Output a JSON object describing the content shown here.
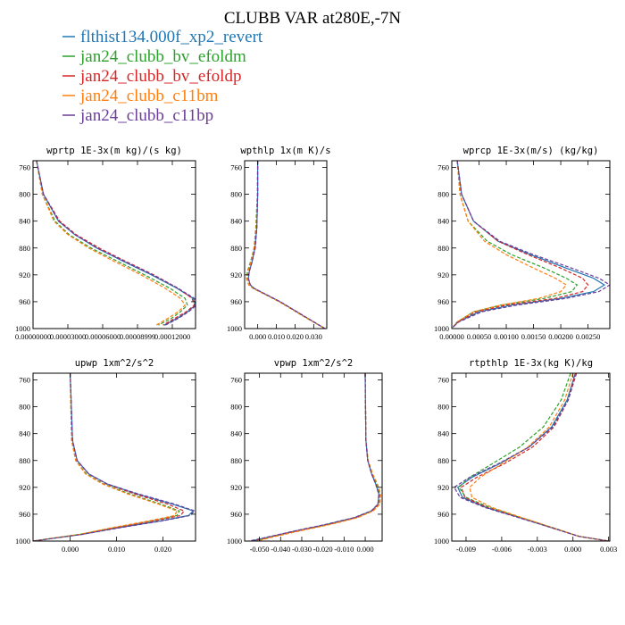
{
  "title": "CLUBB VAR at280E,-7N",
  "legend": [
    {
      "label": "flthist134.000f_xp2_revert",
      "color": "#1f77b4",
      "dash": "solid"
    },
    {
      "label": "jan24_clubb_bv_efoldm",
      "color": "#2ca02c",
      "dash": "dashed"
    },
    {
      "label": "jan24_clubb_bv_efoldp",
      "color": "#d62728",
      "dash": "dashed"
    },
    {
      "label": "jan24_clubb_c11bm",
      "color": "#ff7f0e",
      "dash": "dashed"
    },
    {
      "label": "jan24_clubb_c11bp",
      "color": "#6a3d9a",
      "dash": "dashed"
    }
  ],
  "colors": {
    "flthist134.000f_xp2_revert": "#1f77b4",
    "jan24_clubb_bv_efoldm": "#2ca02c",
    "jan24_clubb_bv_efoldp": "#d62728",
    "jan24_clubb_c11bm": "#ff7f0e",
    "jan24_clubb_c11bp": "#6a3d9a"
  },
  "chart_data": [
    {
      "type": "line",
      "title": "wprtp  1E-3x(m kg)/(s kg)",
      "y_axis": {
        "ticks": [
          760,
          800,
          840,
          880,
          920,
          960,
          1000
        ],
        "ylim": [
          750,
          1000
        ],
        "inverted": true
      },
      "xlim": [
        0.0,
        0.00014
      ],
      "xticks": [
        {
          "value": 0.0,
          "label": "0.00000000"
        },
        {
          "value": 3e-05,
          "label": "0.00003000"
        },
        {
          "value": 6e-05,
          "label": "0.00006000"
        },
        {
          "value": 9e-05,
          "label": "0.00008999"
        },
        {
          "value": 0.00012,
          "label": "0.00012000"
        }
      ],
      "pressure": [
        750,
        800,
        840,
        860,
        880,
        900,
        920,
        940,
        955,
        965,
        975,
        985,
        995
      ],
      "series": [
        {
          "name": "flthist134.000f_xp2_revert",
          "values": [
            3e-06,
            9e-06,
            2.2e-05,
            3.6e-05,
            5.5e-05,
            7.8e-05,
            0.000102,
            0.000124,
            0.000138,
            0.00014,
            0.000133,
            0.000124,
            0.000113
          ]
        },
        {
          "name": "jan24_clubb_bv_efoldm",
          "values": [
            3e-06,
            8e-06,
            1.9e-05,
            3.1e-05,
            5e-05,
            7.3e-05,
            9.6e-05,
            0.000118,
            0.000131,
            0.000133,
            0.000127,
            0.000119,
            0.000108
          ]
        },
        {
          "name": "jan24_clubb_bv_efoldp",
          "values": [
            3e-06,
            9e-06,
            2.3e-05,
            3.7e-05,
            5.7e-05,
            8e-05,
            0.000104,
            0.000125,
            0.000137,
            0.000139,
            0.000132,
            0.000122,
            0.000112
          ]
        },
        {
          "name": "jan24_clubb_c11bm",
          "values": [
            3e-06,
            8e-06,
            1.8e-05,
            3e-05,
            4.8e-05,
            7e-05,
            9.3e-05,
            0.000114,
            0.000127,
            0.000131,
            0.000125,
            0.000116,
            0.000106
          ]
        },
        {
          "name": "jan24_clubb_c11bp",
          "values": [
            3e-06,
            9e-06,
            2.2e-05,
            3.6e-05,
            5.5e-05,
            7.9e-05,
            0.000103,
            0.000125,
            0.000139,
            0.000141,
            0.000134,
            0.000125,
            0.000114
          ]
        }
      ]
    },
    {
      "type": "line",
      "title": "wpthlp  1x(m K)/s",
      "y_axis": {
        "ticks": [
          760,
          800,
          840,
          880,
          920,
          960,
          1000
        ],
        "ylim": [
          750,
          1000
        ],
        "inverted": true
      },
      "xlim": [
        -0.007,
        0.037
      ],
      "xticks": [
        {
          "value": 0.0,
          "label": "0.000"
        },
        {
          "value": 0.01,
          "label": "0.010"
        },
        {
          "value": 0.02,
          "label": "0.020"
        },
        {
          "value": 0.03,
          "label": "0.030"
        }
      ],
      "pressure": [
        750,
        800,
        850,
        880,
        900,
        915,
        925,
        935,
        940,
        960,
        980,
        1000
      ],
      "series": [
        {
          "name": "flthist134.000f_xp2_revert",
          "values": [
            0.0,
            0.0,
            -0.0005,
            -0.0015,
            -0.003,
            -0.0045,
            -0.005,
            -0.004,
            -0.002,
            0.012,
            0.024,
            0.036
          ]
        },
        {
          "name": "jan24_clubb_bv_efoldm",
          "values": [
            0.0,
            -0.0002,
            -0.001,
            -0.002,
            -0.0038,
            -0.0055,
            -0.006,
            -0.0048,
            -0.0025,
            0.0115,
            0.0235,
            0.036
          ]
        },
        {
          "name": "jan24_clubb_bv_efoldp",
          "values": [
            0.0,
            0.0,
            -0.0005,
            -0.0013,
            -0.003,
            -0.0045,
            -0.0052,
            -0.004,
            -0.002,
            0.012,
            0.024,
            0.036
          ]
        },
        {
          "name": "jan24_clubb_c11bm",
          "values": [
            0.0,
            -0.0002,
            -0.0008,
            -0.002,
            -0.0035,
            -0.0052,
            -0.0058,
            -0.0048,
            -0.0025,
            0.0115,
            0.0235,
            0.036
          ]
        },
        {
          "name": "jan24_clubb_c11bp",
          "values": [
            0.0,
            0.0,
            -0.0005,
            -0.0015,
            -0.003,
            -0.0045,
            -0.005,
            -0.004,
            -0.002,
            0.012,
            0.024,
            0.036
          ]
        }
      ]
    },
    {
      "type": "line",
      "title": "wprcp  1E-3x(m/s) (kg/kg)",
      "y_axis": {
        "ticks": [
          760,
          800,
          840,
          880,
          920,
          960,
          1000
        ],
        "ylim": [
          750,
          1000
        ],
        "inverted": true
      },
      "xlim": [
        0.0,
        0.0029
      ],
      "xticks": [
        {
          "value": 0.0,
          "label": "0.00000"
        },
        {
          "value": 0.0005,
          "label": "0.00050"
        },
        {
          "value": 0.001,
          "label": "0.00100"
        },
        {
          "value": 0.0015,
          "label": "0.00150"
        },
        {
          "value": 0.002,
          "label": "0.00200"
        },
        {
          "value": 0.0025,
          "label": "0.00250"
        }
      ],
      "pressure": [
        750,
        800,
        840,
        870,
        890,
        910,
        925,
        935,
        945,
        955,
        965,
        975,
        990,
        998
      ],
      "series": [
        {
          "name": "flthist134.000f_xp2_revert",
          "values": [
            0.0001,
            0.00018,
            0.0004,
            0.00085,
            0.00145,
            0.0021,
            0.0026,
            0.0028,
            0.0026,
            0.002,
            0.0011,
            0.0005,
            0.00012,
            2e-05
          ]
        },
        {
          "name": "jan24_clubb_bv_efoldm",
          "values": [
            0.0001,
            0.00015,
            0.0003,
            0.00065,
            0.0011,
            0.0017,
            0.0021,
            0.0023,
            0.0022,
            0.0017,
            0.0009,
            0.0004,
            0.0001,
            2e-05
          ]
        },
        {
          "name": "jan24_clubb_bv_efoldp",
          "values": [
            0.0001,
            0.00018,
            0.0004,
            0.00085,
            0.0014,
            0.002,
            0.0024,
            0.0025,
            0.0024,
            0.0019,
            0.001,
            0.00045,
            0.00011,
            2e-05
          ]
        },
        {
          "name": "jan24_clubb_c11bm",
          "values": [
            0.0001,
            0.00015,
            0.0003,
            0.0006,
            0.001,
            0.0015,
            0.0019,
            0.0021,
            0.002,
            0.0016,
            0.0009,
            0.0004,
            0.0001,
            2e-05
          ]
        },
        {
          "name": "jan24_clubb_c11bp",
          "values": [
            0.0001,
            0.00018,
            0.0004,
            0.00088,
            0.0015,
            0.0022,
            0.0027,
            0.0029,
            0.0027,
            0.0021,
            0.0012,
            0.00055,
            0.00013,
            2e-05
          ]
        }
      ]
    },
    {
      "type": "line",
      "title": "upwp  1xm^2/s^2",
      "y_axis": {
        "ticks": [
          760,
          800,
          840,
          880,
          920,
          960,
          1000
        ],
        "ylim": [
          750,
          1000
        ],
        "inverted": true
      },
      "xlim": [
        -0.008,
        0.027
      ],
      "xticks": [
        {
          "value": 0.0,
          "label": "0.000"
        },
        {
          "value": 0.01,
          "label": "0.010"
        },
        {
          "value": 0.02,
          "label": "0.020"
        }
      ],
      "pressure": [
        750,
        850,
        880,
        900,
        915,
        930,
        945,
        955,
        962,
        970,
        980,
        990,
        1000
      ],
      "series": [
        {
          "name": "flthist134.000f_xp2_revert",
          "values": [
            0.0,
            0.0005,
            0.0015,
            0.004,
            0.008,
            0.0145,
            0.022,
            0.0265,
            0.0255,
            0.0195,
            0.0105,
            0.0025,
            -0.008
          ]
        },
        {
          "name": "jan24_clubb_bv_efoldm",
          "values": [
            0.0,
            0.0003,
            0.0012,
            0.0035,
            0.0072,
            0.013,
            0.0195,
            0.0235,
            0.023,
            0.0175,
            0.0095,
            0.002,
            -0.008
          ]
        },
        {
          "name": "jan24_clubb_bv_efoldp",
          "values": [
            0.0,
            0.0005,
            0.0015,
            0.004,
            0.0078,
            0.014,
            0.021,
            0.0245,
            0.0238,
            0.018,
            0.0098,
            0.0022,
            -0.008
          ]
        },
        {
          "name": "jan24_clubb_c11bm",
          "values": [
            0.0,
            0.0003,
            0.0012,
            0.0033,
            0.007,
            0.0125,
            0.019,
            0.023,
            0.0225,
            0.017,
            0.009,
            0.002,
            -0.008
          ]
        },
        {
          "name": "jan24_clubb_c11bp",
          "values": [
            0.0,
            0.0005,
            0.0015,
            0.004,
            0.008,
            0.0148,
            0.0225,
            0.0268,
            0.0258,
            0.0198,
            0.0108,
            0.0026,
            -0.008
          ]
        }
      ]
    },
    {
      "type": "line",
      "title": "vpwp  1xm^2/s^2",
      "y_axis": {
        "ticks": [
          760,
          800,
          840,
          880,
          920,
          960,
          1000
        ],
        "ylim": [
          750,
          1000
        ],
        "inverted": true
      },
      "xlim": [
        -0.057,
        0.008
      ],
      "xticks": [
        {
          "value": -0.05,
          "label": "-0.050"
        },
        {
          "value": -0.04,
          "label": "-0.040"
        },
        {
          "value": -0.03,
          "label": "-0.030"
        },
        {
          "value": -0.02,
          "label": "-0.020"
        },
        {
          "value": -0.01,
          "label": "-0.010"
        },
        {
          "value": 0.0,
          "label": "0.000"
        }
      ],
      "pressure": [
        750,
        850,
        880,
        900,
        915,
        930,
        945,
        955,
        965,
        975,
        985,
        995,
        1000
      ],
      "series": [
        {
          "name": "flthist134.000f_xp2_revert",
          "values": [
            0.0,
            0.0003,
            0.0012,
            0.003,
            0.005,
            0.0065,
            0.006,
            0.003,
            -0.005,
            -0.018,
            -0.033,
            -0.047,
            -0.054
          ]
        },
        {
          "name": "jan24_clubb_bv_efoldm",
          "values": [
            0.0,
            0.0003,
            0.0013,
            0.0033,
            0.0055,
            0.007,
            0.0068,
            0.0035,
            -0.004,
            -0.017,
            -0.032,
            -0.046,
            -0.052
          ]
        },
        {
          "name": "jan24_clubb_bv_efoldp",
          "values": [
            0.0,
            0.0003,
            0.0012,
            0.003,
            0.005,
            0.0065,
            0.0062,
            0.003,
            -0.0045,
            -0.0175,
            -0.0325,
            -0.0465,
            -0.053
          ]
        },
        {
          "name": "jan24_clubb_c11bm",
          "values": [
            0.0,
            0.0004,
            0.0014,
            0.0035,
            0.0058,
            0.0073,
            0.007,
            0.0038,
            -0.0035,
            -0.016,
            -0.031,
            -0.045,
            -0.051
          ]
        },
        {
          "name": "jan24_clubb_c11bp",
          "values": [
            0.0,
            0.0003,
            0.0012,
            0.003,
            0.0049,
            0.0064,
            0.006,
            0.0028,
            -0.0052,
            -0.0185,
            -0.0335,
            -0.0475,
            -0.055
          ]
        }
      ]
    },
    {
      "type": "line",
      "title": "rtpthlp  1E-3x(kg K)/kg",
      "y_axis": {
        "ticks": [
          760,
          800,
          840,
          880,
          920,
          960,
          1000
        ],
        "ylim": [
          750,
          1000
        ],
        "inverted": true
      },
      "xlim": [
        -0.0102,
        0.0031
      ],
      "xticks": [
        {
          "value": -0.009,
          "label": "-0.009"
        },
        {
          "value": -0.006,
          "label": "-0.006"
        },
        {
          "value": -0.003,
          "label": "-0.003"
        },
        {
          "value": 0.0,
          "label": "0.000"
        },
        {
          "value": 0.003,
          "label": "0.003"
        }
      ],
      "pressure": [
        750,
        790,
        830,
        860,
        885,
        905,
        920,
        935,
        950,
        965,
        980,
        993,
        1000
      ],
      "series": [
        {
          "name": "flthist134.000f_xp2_revert",
          "values": [
            0.0002,
            -0.0005,
            -0.0018,
            -0.0037,
            -0.0062,
            -0.0085,
            -0.0097,
            -0.0093,
            -0.0073,
            -0.0045,
            -0.0018,
            0.0005,
            0.003
          ]
        },
        {
          "name": "jan24_clubb_bv_efoldm",
          "values": [
            -0.0002,
            -0.001,
            -0.0025,
            -0.0045,
            -0.0068,
            -0.0087,
            -0.0096,
            -0.009,
            -0.007,
            -0.0044,
            -0.0017,
            0.0005,
            0.003
          ]
        },
        {
          "name": "jan24_clubb_bv_efoldp",
          "values": [
            0.0002,
            -0.0004,
            -0.0016,
            -0.0034,
            -0.0058,
            -0.0081,
            -0.0094,
            -0.0091,
            -0.0072,
            -0.0045,
            -0.0018,
            0.0005,
            0.003
          ]
        },
        {
          "name": "jan24_clubb_c11bm",
          "values": [
            0.0,
            -0.0007,
            -0.002,
            -0.0038,
            -0.006,
            -0.0078,
            -0.0087,
            -0.0085,
            -0.0068,
            -0.0043,
            -0.0017,
            0.0005,
            0.003
          ]
        },
        {
          "name": "jan24_clubb_c11bp",
          "values": [
            0.0003,
            -0.0004,
            -0.0017,
            -0.0037,
            -0.0063,
            -0.0087,
            -0.01,
            -0.0095,
            -0.0074,
            -0.0046,
            -0.0018,
            0.0005,
            0.003
          ]
        }
      ]
    }
  ]
}
